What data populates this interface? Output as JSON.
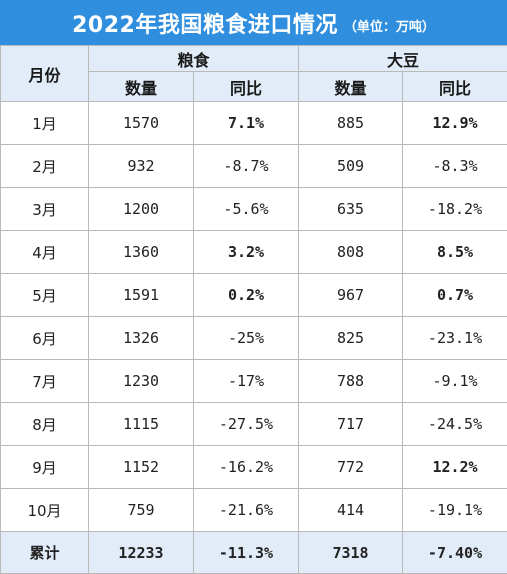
{
  "title": "2022年我国粮食进口情况",
  "unit": "（单位：万吨）",
  "headers": {
    "month": "月份",
    "grain": "粮食",
    "soybean": "大豆",
    "qty": "数量",
    "yoy": "同比"
  },
  "colors": {
    "title_bg": "#2f8fde",
    "header_bg": "#e1ecf8",
    "positive": "#e02020",
    "negative": "#47a32b"
  },
  "rows": [
    {
      "month": "1月",
      "grain_qty": "1570",
      "grain_yoy": "7.1%",
      "soy_qty": "885",
      "soy_yoy": "12.9%"
    },
    {
      "month": "2月",
      "grain_qty": "932",
      "grain_yoy": "-8.7%",
      "soy_qty": "509",
      "soy_yoy": "-8.3%"
    },
    {
      "month": "3月",
      "grain_qty": "1200",
      "grain_yoy": "-5.6%",
      "soy_qty": "635",
      "soy_yoy": "-18.2%"
    },
    {
      "month": "4月",
      "grain_qty": "1360",
      "grain_yoy": "3.2%",
      "soy_qty": "808",
      "soy_yoy": "8.5%"
    },
    {
      "month": "5月",
      "grain_qty": "1591",
      "grain_yoy": "0.2%",
      "soy_qty": "967",
      "soy_yoy": "0.7%"
    },
    {
      "month": "6月",
      "grain_qty": "1326",
      "grain_yoy": "-25%",
      "soy_qty": "825",
      "soy_yoy": "-23.1%"
    },
    {
      "month": "7月",
      "grain_qty": "1230",
      "grain_yoy": "-17%",
      "soy_qty": "788",
      "soy_yoy": "-9.1%"
    },
    {
      "month": "8月",
      "grain_qty": "1115",
      "grain_yoy": "-27.5%",
      "soy_qty": "717",
      "soy_yoy": "-24.5%"
    },
    {
      "month": "9月",
      "grain_qty": "1152",
      "grain_yoy": "-16.2%",
      "soy_qty": "772",
      "soy_yoy": "12.2%"
    },
    {
      "month": "10月",
      "grain_qty": "759",
      "grain_yoy": "-21.6%",
      "soy_qty": "414",
      "soy_yoy": "-19.1%"
    }
  ],
  "total": {
    "month": "累计",
    "grain_qty": "12233",
    "grain_yoy": "-11.3%",
    "soy_qty": "7318",
    "soy_yoy": "-7.40%"
  }
}
